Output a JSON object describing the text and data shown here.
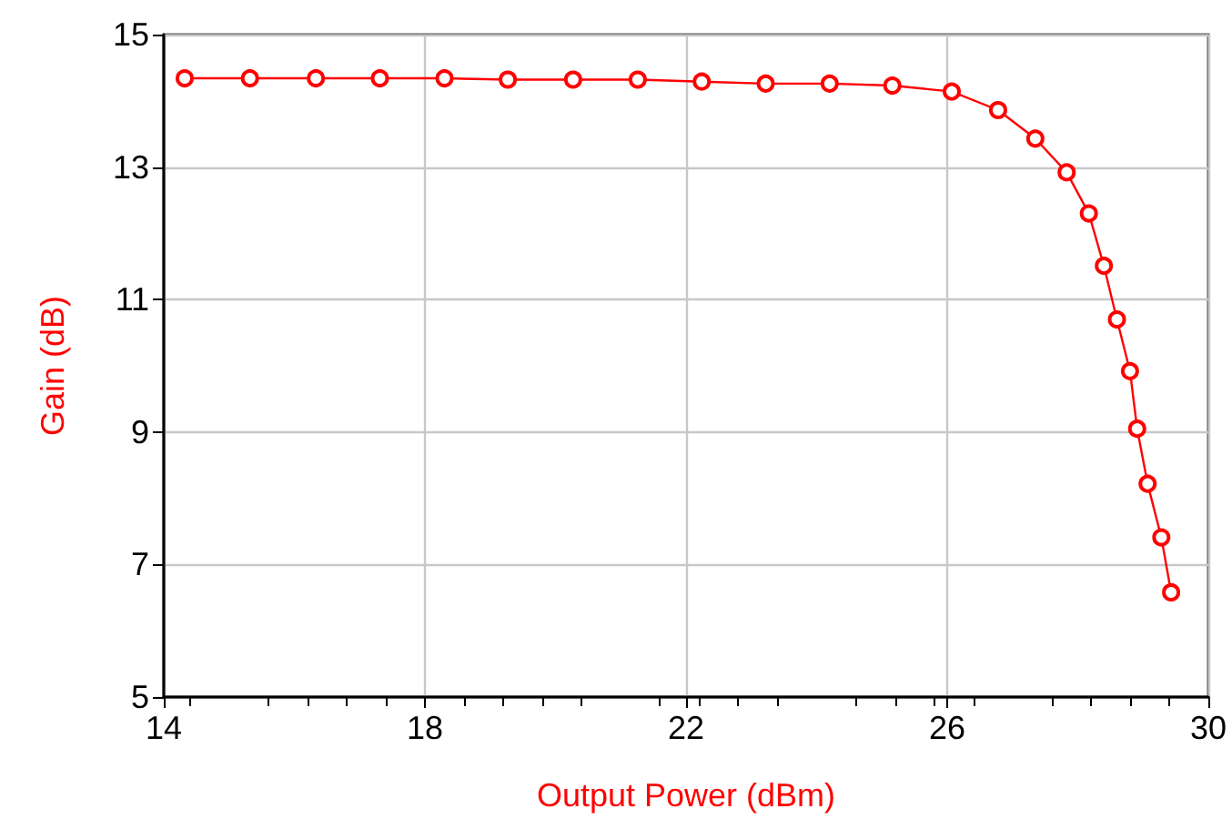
{
  "chart_data": {
    "type": "line",
    "xlabel": "Output Power (dBm)",
    "ylabel": "Gain (dB)",
    "x": [
      14.32,
      15.32,
      16.33,
      17.31,
      18.3,
      19.27,
      20.27,
      21.26,
      22.24,
      23.22,
      24.2,
      25.16,
      26.07,
      26.78,
      27.35,
      27.83,
      28.17,
      28.4,
      28.6,
      28.8,
      28.91,
      29.07,
      29.28,
      29.43
    ],
    "series": [
      {
        "color": "#ff0000",
        "values": [
          14.34,
          14.34,
          14.34,
          14.34,
          14.34,
          14.32,
          14.32,
          14.32,
          14.29,
          14.26,
          14.26,
          14.23,
          14.14,
          13.86,
          13.43,
          12.92,
          12.3,
          11.51,
          10.7,
          9.92,
          9.05,
          8.22,
          7.41,
          6.58
        ]
      }
    ],
    "xlim": [
      14,
      30
    ],
    "xticks": [
      14,
      18,
      22,
      26,
      30
    ],
    "ylim": [
      5,
      15
    ],
    "yticks": [
      5,
      7,
      9,
      11,
      13,
      15
    ],
    "grid": true,
    "marker": "circle",
    "line_style": "solid"
  }
}
